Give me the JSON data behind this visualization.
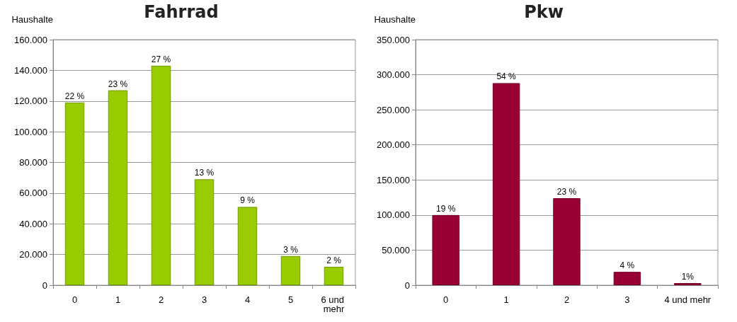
{
  "chart_data": [
    {
      "type": "bar",
      "title": "Fahrrad",
      "ylabel": "Haushalte",
      "categories": [
        "0",
        "1",
        "2",
        "3",
        "4",
        "5",
        "6 und mehr"
      ],
      "values": [
        119000,
        127000,
        143000,
        69000,
        51000,
        19000,
        12000
      ],
      "annotations": [
        {
          "text": "22 %",
          "x": "0",
          "y": 119000
        },
        {
          "text": "23 %",
          "x": "1",
          "y": 127000
        },
        {
          "text": "27 %",
          "x": "2",
          "y": 143000
        },
        {
          "text": "13 %",
          "x": "3",
          "y": 69000
        },
        {
          "text": "9 %",
          "x": "4",
          "y": 51000
        },
        {
          "text": "3 %",
          "x": "5",
          "y": 19000
        },
        {
          "text": "2 %",
          "x": "6 und mehr",
          "y": 12000
        }
      ],
      "color": "#99cc00",
      "ylim": [
        0,
        160000
      ],
      "yticks": [
        {
          "value": 0,
          "label": "0"
        },
        {
          "value": 20000,
          "label": "20.000"
        },
        {
          "value": 40000,
          "label": "40.000"
        },
        {
          "value": 60000,
          "label": "60.000"
        },
        {
          "value": 80000,
          "label": "80.000"
        },
        {
          "value": 100000,
          "label": "100.000"
        },
        {
          "value": 120000,
          "label": "120.000"
        },
        {
          "value": 140000,
          "label": "140.000"
        },
        {
          "value": 160000,
          "label": "160.000"
        }
      ],
      "grid": "y"
    },
    {
      "type": "bar",
      "title": "Pkw",
      "ylabel": "Haushalte",
      "categories": [
        "0",
        "1",
        "2",
        "3",
        "4 und mehr"
      ],
      "values": [
        100000,
        288000,
        124000,
        19000,
        3000
      ],
      "annotations": [
        {
          "text": "19 %",
          "x": "0",
          "y": 100000
        },
        {
          "text": "54 %",
          "x": "1",
          "y": 288000
        },
        {
          "text": "23 %",
          "x": "2",
          "y": 124000
        },
        {
          "text": "4 %",
          "x": "3",
          "y": 19000
        },
        {
          "text": "1%",
          "x": "4 und mehr",
          "y": 3000
        }
      ],
      "color": "#990033",
      "ylim": [
        0,
        350000
      ],
      "yticks": [
        {
          "value": 0,
          "label": "0"
        },
        {
          "value": 50000,
          "label": "50.000"
        },
        {
          "value": 100000,
          "label": "100.000"
        },
        {
          "value": 150000,
          "label": "150.000"
        },
        {
          "value": 200000,
          "label": "200.000"
        },
        {
          "value": 250000,
          "label": "250.000"
        },
        {
          "value": 300000,
          "label": "300.000"
        },
        {
          "value": 350000,
          "label": "350.000"
        }
      ],
      "grid": "y"
    }
  ]
}
